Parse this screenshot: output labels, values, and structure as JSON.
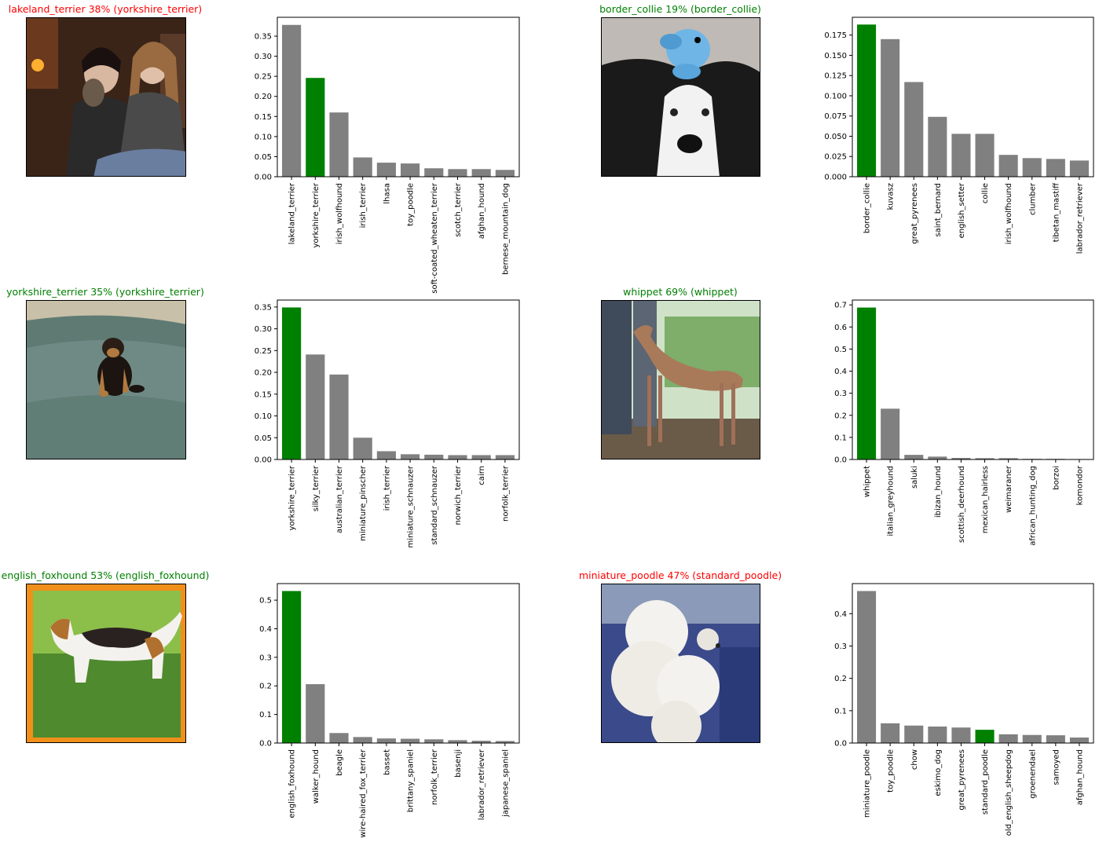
{
  "colors": {
    "correct": "#008000",
    "wrong": "#ff0000",
    "bar": "#808080",
    "true_bar": "#008000"
  },
  "panels": [
    {
      "title": "lakeland_terrier 38% (yorkshire_terrier)",
      "correct": false,
      "photo": "photo of two people holding a small yorkshire terrier",
      "chart_data": {
        "type": "bar",
        "categories": [
          "lakeland_terrier",
          "yorkshire_terrier",
          "irish_wolfhound",
          "irish_terrier",
          "lhasa",
          "toy_poodle",
          "soft-coated_wheaten_terrier",
          "scotch_terrier",
          "afghan_hound",
          "bernese_mountain_dog"
        ],
        "values": [
          0.378,
          0.246,
          0.16,
          0.048,
          0.035,
          0.033,
          0.021,
          0.019,
          0.019,
          0.017
        ],
        "highlight_index": 1,
        "yticks": [
          "0.00",
          "0.05",
          "0.10",
          "0.15",
          "0.20",
          "0.25",
          "0.30",
          "0.35"
        ],
        "ylim": [
          0,
          0.397
        ]
      }
    },
    {
      "title": "border_collie 19% (border_collie)",
      "correct": true,
      "photo": "photo of a black and white border collie with a blue plush toy on its head",
      "chart_data": {
        "type": "bar",
        "categories": [
          "border_collie",
          "kuvasz",
          "great_pyrenees",
          "saint_bernard",
          "english_setter",
          "collie",
          "irish_wolfhound",
          "clumber",
          "tibetan_mastiff",
          "labrador_retriever"
        ],
        "values": [
          0.188,
          0.17,
          0.117,
          0.074,
          0.053,
          0.053,
          0.027,
          0.023,
          0.022,
          0.02
        ],
        "highlight_index": 0,
        "yticks": [
          "0.000",
          "0.025",
          "0.050",
          "0.075",
          "0.100",
          "0.125",
          "0.150",
          "0.175"
        ],
        "ylim": [
          0,
          0.197
        ]
      }
    },
    {
      "title": "yorkshire_terrier 35% (yorkshire_terrier)",
      "correct": true,
      "photo": "photo of a yorkshire terrier puppy on a green couch",
      "chart_data": {
        "type": "bar",
        "categories": [
          "yorkshire_terrier",
          "silky_terrier",
          "australian_terrier",
          "miniature_pinscher",
          "irish_terrier",
          "miniature_schnauzer",
          "standard_schnauzer",
          "norwich_terrier",
          "cairn",
          "norfolk_terrier"
        ],
        "values": [
          0.349,
          0.241,
          0.195,
          0.05,
          0.019,
          0.012,
          0.011,
          0.01,
          0.01,
          0.01
        ],
        "highlight_index": 0,
        "yticks": [
          "0.00",
          "0.05",
          "0.10",
          "0.15",
          "0.20",
          "0.25",
          "0.30",
          "0.35"
        ],
        "ylim": [
          0,
          0.366
        ]
      }
    },
    {
      "title": "whippet 69% (whippet)",
      "correct": true,
      "photo": "photo of a brown whippet standing outdoors",
      "chart_data": {
        "type": "bar",
        "categories": [
          "whippet",
          "italian_greyhound",
          "saluki",
          "ibizan_hound",
          "scottish_deerhound",
          "mexican_hairless",
          "weimaraner",
          "african_hunting_dog",
          "borzoi",
          "komondor"
        ],
        "values": [
          0.688,
          0.23,
          0.021,
          0.013,
          0.007,
          0.006,
          0.006,
          0.003,
          0.003,
          0.002
        ],
        "highlight_index": 0,
        "yticks": [
          "0.0",
          "0.1",
          "0.2",
          "0.3",
          "0.4",
          "0.5",
          "0.6",
          "0.7"
        ],
        "ylim": [
          0,
          0.722
        ]
      }
    },
    {
      "title": "english_foxhound 53% (english_foxhound)",
      "correct": true,
      "photo": "photo of a tricolor english foxhound standing on grass with an orange stamp border",
      "chart_data": {
        "type": "bar",
        "categories": [
          "english_foxhound",
          "walker_hound",
          "beagle",
          "wire-haired_fox_terrier",
          "basset",
          "brittany_spaniel",
          "norfolk_terrier",
          "basenji",
          "labrador_retriever",
          "japanese_spaniel"
        ],
        "values": [
          0.532,
          0.206,
          0.035,
          0.021,
          0.016,
          0.015,
          0.013,
          0.01,
          0.008,
          0.007
        ],
        "highlight_index": 0,
        "yticks": [
          "0.0",
          "0.1",
          "0.2",
          "0.3",
          "0.4",
          "0.5"
        ],
        "ylim": [
          0,
          0.558
        ]
      }
    },
    {
      "title": "miniature_poodle 47% (standard_poodle)",
      "correct": false,
      "photo": "photo of a white poodle at a dog show",
      "chart_data": {
        "type": "bar",
        "categories": [
          "miniature_poodle",
          "toy_poodle",
          "chow",
          "eskimo_dog",
          "great_pyrenees",
          "standard_poodle",
          "old_english_sheepdog",
          "groenendael",
          "samoyed",
          "afghan_hound"
        ],
        "values": [
          0.47,
          0.061,
          0.054,
          0.051,
          0.048,
          0.041,
          0.027,
          0.025,
          0.024,
          0.017
        ],
        "highlight_index": 5,
        "yticks": [
          "0.0",
          "0.1",
          "0.2",
          "0.3",
          "0.4"
        ],
        "ylim": [
          0,
          0.493
        ]
      }
    }
  ]
}
